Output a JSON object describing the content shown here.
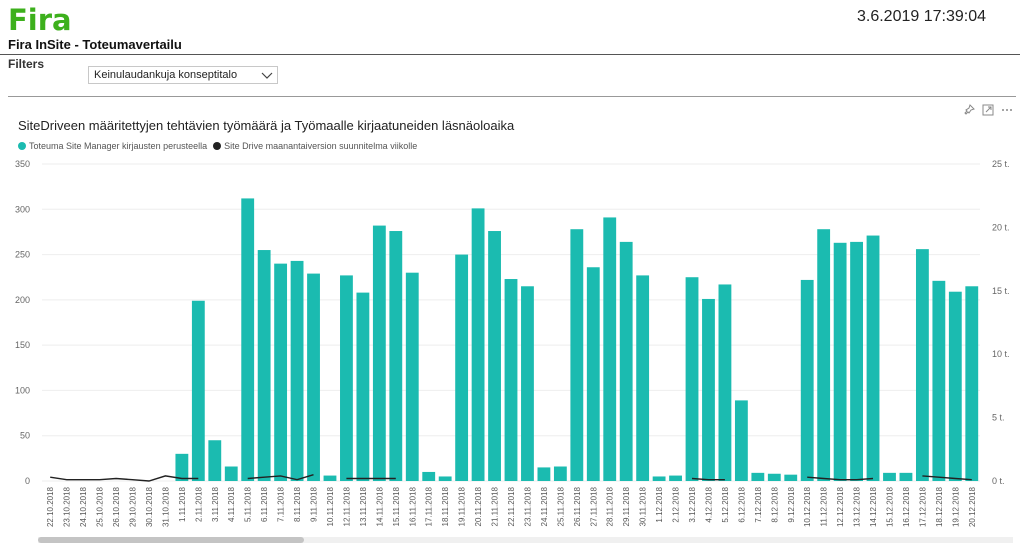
{
  "app": {
    "logo": "Fira",
    "timestamp": "3.6.2019 17:39:04",
    "title": "Fira InSite - Toteumavertailu"
  },
  "filters": {
    "label": "Filters",
    "selected": "Keinulaudankuja konseptitalo"
  },
  "icons": [
    "pin-icon",
    "focus-mode-icon",
    "more-options-icon"
  ],
  "colors": {
    "bar": "#1bbbb0",
    "line": "#222222",
    "logo": "#3db01c"
  },
  "chart_data": {
    "type": "bar",
    "title": "SiteDriveen määritettyjen tehtävien työmäärä ja Työmaalle kirjaatuneiden läsnäoloaika",
    "legend_position": "top-left",
    "grid": true,
    "ylim": [
      0,
      350
    ],
    "y_ticks": [
      "0",
      "50",
      "100",
      "150",
      "200",
      "250",
      "300",
      "350"
    ],
    "y2lim": [
      0,
      25
    ],
    "y2_ticks": [
      "0 t.",
      "5 t.",
      "10 t.",
      "15 t.",
      "20 t.",
      "25 t."
    ],
    "categories": [
      "22.10.2018",
      "23.10.2018",
      "24.10.2018",
      "25.10.2018",
      "26.10.2018",
      "29.10.2018",
      "30.10.2018",
      "31.10.2018",
      "1.11.2018",
      "2.11.2018",
      "3.11.2018",
      "4.11.2018",
      "5.11.2018",
      "6.11.2018",
      "7.11.2018",
      "8.11.2018",
      "9.11.2018",
      "10.11.2018",
      "12.11.2018",
      "13.11.2018",
      "14.11.2018",
      "15.11.2018",
      "16.11.2018",
      "17.11.2018",
      "18.11.2018",
      "19.11.2018",
      "20.11.2018",
      "21.11.2018",
      "22.11.2018",
      "23.11.2018",
      "24.11.2018",
      "25.11.2018",
      "26.11.2018",
      "27.11.2018",
      "28.11.2018",
      "29.11.2018",
      "30.11.2018",
      "1.12.2018",
      "2.12.2018",
      "3.12.2018",
      "4.12.2018",
      "5.12.2018",
      "6.12.2018",
      "7.12.2018",
      "8.12.2018",
      "9.12.2018",
      "10.12.2018",
      "11.12.2018",
      "12.12.2018",
      "13.12.2018",
      "14.12.2018",
      "15.12.2018",
      "16.12.2018",
      "17.12.2018",
      "18.12.2018",
      "19.12.2018",
      "20.12.2018"
    ],
    "series": [
      {
        "name": "Toteuma Site Manager kirjausten perusteella",
        "type": "bar",
        "axis": "left",
        "values": [
          0,
          0,
          0,
          0,
          0,
          0,
          0,
          0,
          30,
          199,
          45,
          16,
          312,
          255,
          240,
          243,
          229,
          6,
          227,
          208,
          282,
          276,
          230,
          10,
          5,
          250,
          301,
          276,
          223,
          215,
          15,
          16,
          278,
          236,
          291,
          264,
          227,
          5,
          6,
          225,
          201,
          217,
          89,
          9,
          8,
          7,
          222,
          278,
          263,
          264,
          271,
          9,
          9,
          256,
          221,
          209,
          215
        ]
      },
      {
        "name": "Site Drive maanantaiversion suunnitelma viikolle",
        "type": "line",
        "axis": "right",
        "values": [
          0.3,
          0.1,
          0.1,
          0.1,
          0.2,
          0.1,
          0,
          0.4,
          0.2,
          0.2,
          null,
          null,
          0.2,
          0.3,
          0.4,
          0.1,
          0.5,
          null,
          0.2,
          0.2,
          0.2,
          0.2,
          null,
          null,
          null,
          null,
          null,
          null,
          null,
          null,
          null,
          null,
          null,
          null,
          null,
          null,
          null,
          null,
          null,
          0.2,
          0.1,
          0.1,
          null,
          0,
          null,
          null,
          0.3,
          0.2,
          0.1,
          0.1,
          0.2,
          null,
          null,
          0.4,
          0.3,
          0.2,
          0.1
        ]
      }
    ]
  }
}
